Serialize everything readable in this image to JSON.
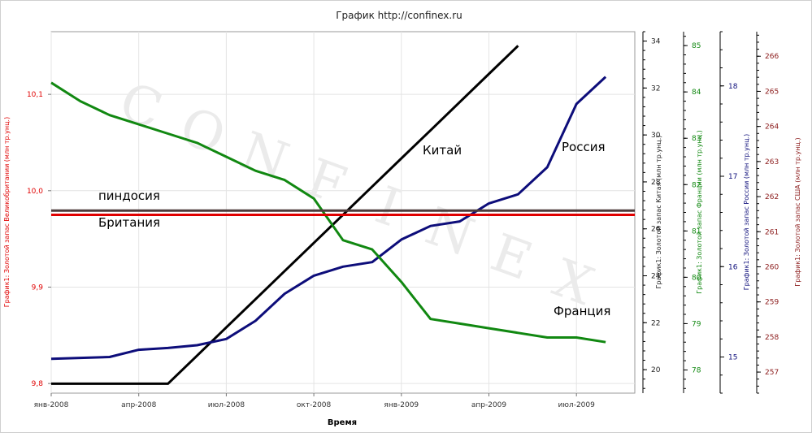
{
  "title": "График   http://confinex.ru",
  "xlabel": "Время",
  "watermark": [
    "C",
    "O",
    "N",
    "F",
    "I",
    "N",
    "E",
    "X"
  ],
  "colors": {
    "britain": "#e00000",
    "china": "#000000",
    "france": "#118811",
    "russia": "#0d0d7a",
    "usa": "#8b1a1a",
    "pindosia": "#4d3b3b",
    "grid": "#e4e4e4"
  },
  "chart_data": {
    "type": "line",
    "title": "График   http://confinex.ru",
    "xlabel": "Время",
    "x_ticks": [
      "янв-2008",
      "апр-2008",
      "июл-2008",
      "окт-2008",
      "янв-2009",
      "апр-2009",
      "июл-2009"
    ],
    "axes": {
      "britain": {
        "label": "График1: Золотой запас Великобритании (млн тр.унц.)",
        "range": [
          9.79,
          10.165
        ],
        "ticks": [
          "9,8",
          "9,9",
          "10,0",
          "10,1"
        ],
        "tick_values": [
          9.8,
          9.9,
          10.0,
          10.1
        ]
      },
      "china": {
        "label": "График1: Золотой запас Китая (млн тр.унц.)",
        "range": [
          19.0,
          34.4
        ],
        "ticks": [
          "20",
          "22",
          "24",
          "26",
          "28",
          "30",
          "32",
          "34"
        ],
        "tick_values": [
          20,
          22,
          24,
          26,
          28,
          30,
          32,
          34
        ]
      },
      "france": {
        "label": "График1: Золотой запас Франции (млн тр.унц.)",
        "range": [
          77.5,
          85.3
        ],
        "ticks": [
          "78",
          "79",
          "80",
          "81",
          "82",
          "83",
          "84",
          "85"
        ],
        "tick_values": [
          78,
          79,
          80,
          81,
          82,
          83,
          84,
          85
        ]
      },
      "russia": {
        "label": "График1: Золотой запас России (млн тр.унц.)",
        "range": [
          14.6,
          18.6
        ],
        "ticks": [
          "15",
          "16",
          "17",
          "18"
        ],
        "tick_values": [
          15,
          16,
          17,
          18
        ]
      },
      "usa": {
        "label": "График1: Золотой запас США (млн тр.унц.)",
        "range": [
          256.4,
          266.7
        ],
        "ticks": [
          "257",
          "258",
          "259",
          "260",
          "261",
          "262",
          "263",
          "264",
          "265",
          "266"
        ],
        "tick_values": [
          257,
          258,
          259,
          260,
          261,
          262,
          263,
          264,
          265,
          266
        ]
      }
    },
    "series": [
      {
        "name": "Китай",
        "axis": "china",
        "x": [
          0,
          1,
          2,
          3,
          4,
          5,
          6,
          7,
          8,
          9,
          10,
          11,
          12,
          13,
          14,
          15,
          16,
          17,
          18,
          19,
          20
        ],
        "values": [
          19.4,
          19.4,
          19.4,
          19.4,
          19.4,
          20.6,
          21.8,
          23.0,
          24.2,
          25.4,
          26.6,
          27.8,
          29.0,
          30.2,
          31.4,
          32.6,
          33.8,
          null,
          null,
          null,
          null
        ],
        "label_pos": "above"
      },
      {
        "name": "Россия",
        "axis": "russia",
        "x": [
          0,
          1,
          2,
          3,
          4,
          5,
          6,
          7,
          8,
          9,
          10,
          11,
          12,
          13,
          14,
          15,
          16,
          17,
          18,
          19,
          20
        ],
        "values": [
          14.98,
          14.99,
          15.0,
          15.08,
          15.1,
          15.13,
          15.2,
          15.4,
          15.7,
          15.9,
          16.0,
          16.05,
          16.3,
          16.45,
          16.5,
          16.7,
          16.8,
          17.1,
          17.8,
          18.1,
          null
        ],
        "label_pos": "above"
      },
      {
        "name": "Франция",
        "axis": "france",
        "x": [
          0,
          1,
          2,
          3,
          4,
          5,
          6,
          7,
          8,
          9,
          10,
          11,
          12,
          13,
          14,
          15,
          16,
          17,
          18,
          19,
          20
        ],
        "values": [
          84.2,
          83.8,
          83.5,
          83.3,
          83.1,
          82.9,
          82.6,
          82.3,
          82.1,
          81.7,
          80.8,
          80.6,
          79.9,
          79.1,
          79.0,
          78.9,
          78.8,
          78.7,
          78.7,
          78.6,
          null
        ],
        "label_pos": "above"
      },
      {
        "name": "Британия",
        "axis": "britain",
        "x": [
          0,
          20
        ],
        "values": [
          9.975,
          9.975
        ],
        "label_pos": "below"
      },
      {
        "name": "пиндосия",
        "axis": "usa",
        "x": [
          0,
          20
        ],
        "values": [
          261.6,
          261.6
        ],
        "label_pos": "above"
      }
    ]
  }
}
